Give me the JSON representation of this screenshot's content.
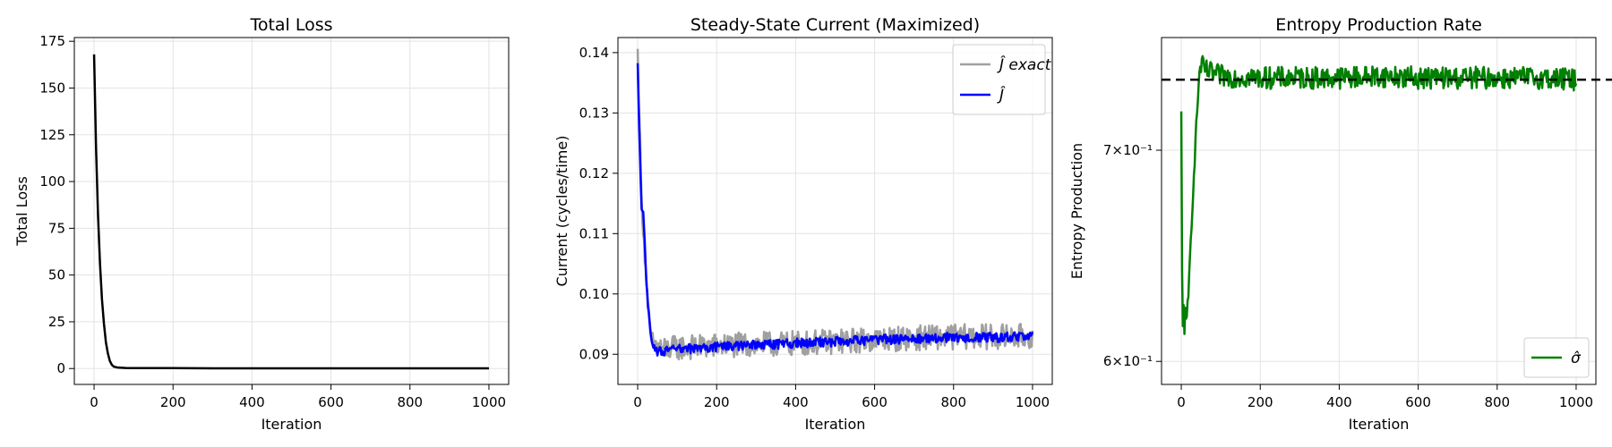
{
  "chart_data": [
    {
      "type": "line",
      "title": "Total Loss",
      "xlabel": "Iteration",
      "ylabel": "Total Loss",
      "xlim": [
        -50,
        1050
      ],
      "ylim": [
        -8.5,
        177
      ],
      "xticks": [
        0,
        200,
        400,
        600,
        800,
        1000
      ],
      "xtick_labels": [
        "0",
        "200",
        "400",
        "600",
        "800",
        "1000"
      ],
      "yticks": [
        0,
        25,
        50,
        75,
        100,
        125,
        150,
        175
      ],
      "ytick_labels": [
        "0",
        "25",
        "50",
        "75",
        "100",
        "125",
        "150",
        "175"
      ],
      "grid": true,
      "series": [
        {
          "color": "#000000",
          "x": [
            0,
            5,
            10,
            15,
            20,
            25,
            30,
            35,
            40,
            45,
            50,
            60,
            80,
            100,
            150,
            200,
            300,
            400,
            500,
            600,
            700,
            800,
            900,
            1000
          ],
          "y": [
            168,
            118,
            82,
            56,
            37,
            24,
            14,
            8,
            4,
            2,
            1,
            0.5,
            0.3,
            0.2,
            0.2,
            0.2,
            0.1,
            0.1,
            0.1,
            0.1,
            0.1,
            0.1,
            0.1,
            0.1
          ]
        }
      ]
    },
    {
      "type": "line",
      "title": "Steady-State Current (Maximized)",
      "xlabel": "Iteration",
      "ylabel": "Current (cycles/time)",
      "xlim": [
        -50,
        1050
      ],
      "ylim": [
        0.085,
        0.1425
      ],
      "xticks": [
        0,
        200,
        400,
        600,
        800,
        1000
      ],
      "xtick_labels": [
        "0",
        "200",
        "400",
        "600",
        "800",
        "1000"
      ],
      "yticks": [
        0.09,
        0.1,
        0.11,
        0.12,
        0.13,
        0.14
      ],
      "ytick_labels": [
        "0.09",
        "0.10",
        "0.11",
        "0.12",
        "0.13",
        "0.14"
      ],
      "grid": true,
      "legend": {
        "placement": "top-right",
        "entries": [
          "Ĵ exact",
          "Ĵ"
        ]
      },
      "series": [
        {
          "name": "Ĵ exact",
          "color": "#a0a0a0",
          "noise": 0.0021,
          "x": [
            0,
            5,
            10,
            15,
            20,
            25,
            30,
            35,
            40,
            45,
            50,
            60,
            70,
            80,
            100,
            150,
            200,
            300,
            400,
            500,
            600,
            700,
            800,
            900,
            1000
          ],
          "y": [
            0.14,
            0.128,
            0.115,
            0.11,
            0.104,
            0.099,
            0.095,
            0.093,
            0.092,
            0.0915,
            0.091,
            0.0912,
            0.0908,
            0.0909,
            0.0911,
            0.0912,
            0.0914,
            0.0916,
            0.0918,
            0.0921,
            0.0924,
            0.0927,
            0.0929,
            0.0929,
            0.093
          ]
        },
        {
          "name": "Ĵ",
          "color": "#0000ff",
          "noise": 0.0008,
          "x": [
            0,
            5,
            10,
            15,
            20,
            25,
            30,
            35,
            40,
            45,
            50,
            60,
            70,
            80,
            100,
            150,
            200,
            300,
            400,
            500,
            600,
            700,
            800,
            900,
            1000
          ],
          "y": [
            0.138,
            0.125,
            0.114,
            0.113,
            0.105,
            0.099,
            0.095,
            0.092,
            0.0912,
            0.0908,
            0.0905,
            0.0906,
            0.0905,
            0.0906,
            0.0908,
            0.091,
            0.0912,
            0.0915,
            0.0918,
            0.0921,
            0.0924,
            0.0926,
            0.0928,
            0.0928,
            0.0929
          ]
        }
      ]
    },
    {
      "type": "line",
      "title": "Entropy Production Rate",
      "xlabel": "Iteration",
      "ylabel": "Entropy Production",
      "xlim": [
        -50,
        1050
      ],
      "ylim": [
        0.59,
        0.76
      ],
      "yscale": "log",
      "xticks": [
        0,
        200,
        400,
        600,
        800,
        1000
      ],
      "xtick_labels": [
        "0",
        "200",
        "400",
        "600",
        "800",
        "1000"
      ],
      "yticks": [
        0.6,
        0.7
      ],
      "ytick_labels": [
        "6×10⁻¹",
        "7×10⁻¹"
      ],
      "grid": true,
      "legend": {
        "placement": "bottom-right",
        "entries": [
          "σ̂"
        ]
      },
      "reference_line": {
        "y": 0.737,
        "style": "dashed",
        "color": "#000000"
      },
      "series": [
        {
          "name": "σ̂",
          "color": "#008000",
          "noise": 0.006,
          "x": [
            0,
            3,
            5,
            8,
            10,
            13,
            15,
            18,
            20,
            25,
            30,
            35,
            40,
            45,
            50,
            60,
            80,
            100,
            200,
            300,
            400,
            500,
            600,
            700,
            800,
            900,
            1000
          ],
          "y": [
            0.718,
            0.6,
            0.63,
            0.615,
            0.625,
            0.612,
            0.622,
            0.628,
            0.638,
            0.66,
            0.68,
            0.7,
            0.72,
            0.738,
            0.745,
            0.742,
            0.74,
            0.739,
            0.738,
            0.738,
            0.738,
            0.739,
            0.738,
            0.738,
            0.738,
            0.738,
            0.737
          ]
        }
      ]
    }
  ]
}
